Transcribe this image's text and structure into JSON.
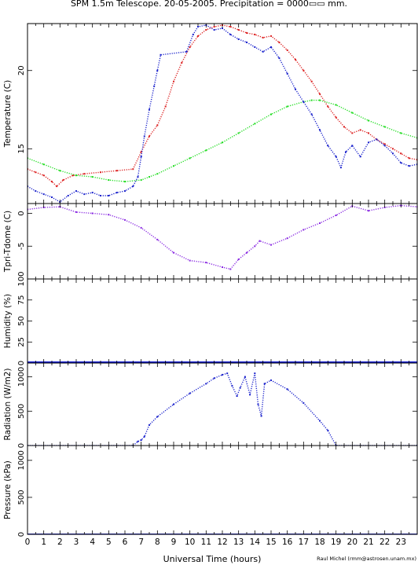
{
  "figure": {
    "title": "SPM 1.5m Telescope. 20-05-2005. Precipitation = 0000▭▭ mm.",
    "xlabel": "Universal Time (hours)",
    "credit": "Raul Michel (rmm@astrosen.unam.mx)"
  },
  "colors": {
    "red": "#dd2222",
    "green": "#22dd22",
    "blue": "#1a22cc",
    "purple": "#8a2be2",
    "axis": "#000000"
  },
  "chart_data": [
    {
      "type": "scatter",
      "ylabel": "Temperature (C)",
      "xlim": [
        0,
        24
      ],
      "ylim": [
        11.5,
        23
      ],
      "yticks": [
        15,
        20
      ],
      "series": [
        {
          "color": "red",
          "points": [
            [
              0,
              13.7
            ],
            [
              0.5,
              13.5
            ],
            [
              1,
              13.3
            ],
            [
              1.5,
              12.9
            ],
            [
              1.8,
              12.6
            ],
            [
              2.2,
              13.0
            ],
            [
              2.8,
              13.3
            ],
            [
              3.5,
              13.4
            ],
            [
              4.5,
              13.5
            ],
            [
              5.5,
              13.6
            ],
            [
              6.5,
              13.7
            ],
            [
              7.0,
              14.8
            ],
            [
              7.5,
              15.8
            ],
            [
              8.0,
              16.5
            ],
            [
              8.5,
              17.7
            ],
            [
              9.0,
              19.3
            ],
            [
              9.5,
              20.5
            ],
            [
              10.0,
              21.5
            ],
            [
              10.5,
              22.2
            ],
            [
              11.0,
              22.6
            ],
            [
              11.5,
              22.8
            ],
            [
              12.0,
              22.9
            ],
            [
              12.5,
              22.8
            ],
            [
              13.0,
              22.6
            ],
            [
              13.5,
              22.4
            ],
            [
              14.0,
              22.3
            ],
            [
              14.5,
              22.1
            ],
            [
              15.0,
              22.2
            ],
            [
              15.5,
              21.8
            ],
            [
              16.0,
              21.3
            ],
            [
              16.5,
              20.7
            ],
            [
              17.0,
              20.0
            ],
            [
              17.5,
              19.3
            ],
            [
              18.0,
              18.5
            ],
            [
              18.5,
              17.7
            ],
            [
              19.0,
              17.0
            ],
            [
              19.5,
              16.4
            ],
            [
              20.0,
              16.0
            ],
            [
              20.5,
              16.2
            ],
            [
              21.0,
              16.0
            ],
            [
              21.5,
              15.6
            ],
            [
              22.0,
              15.3
            ],
            [
              22.5,
              15.0
            ],
            [
              23.0,
              14.7
            ],
            [
              23.5,
              14.4
            ],
            [
              24,
              14.3
            ]
          ]
        },
        {
          "color": "green",
          "points": [
            [
              0,
              14.4
            ],
            [
              1,
              14.0
            ],
            [
              2,
              13.6
            ],
            [
              3,
              13.3
            ],
            [
              4,
              13.2
            ],
            [
              5,
              13.0
            ],
            [
              6,
              12.9
            ],
            [
              7,
              13.0
            ],
            [
              7.5,
              13.2
            ],
            [
              8,
              13.4
            ],
            [
              9,
              13.9
            ],
            [
              10,
              14.4
            ],
            [
              11,
              14.9
            ],
            [
              12,
              15.4
            ],
            [
              13,
              16.0
            ],
            [
              14,
              16.6
            ],
            [
              15,
              17.2
            ],
            [
              16,
              17.7
            ],
            [
              17,
              18.0
            ],
            [
              17.5,
              18.1
            ],
            [
              18,
              18.1
            ],
            [
              19,
              17.8
            ],
            [
              20,
              17.3
            ],
            [
              21,
              16.8
            ],
            [
              22,
              16.4
            ],
            [
              23,
              16.0
            ],
            [
              24,
              15.7
            ]
          ]
        },
        {
          "color": "blue",
          "points": [
            [
              0,
              12.6
            ],
            [
              0.5,
              12.3
            ],
            [
              1,
              12.1
            ],
            [
              1.5,
              11.9
            ],
            [
              2,
              11.6
            ],
            [
              2.5,
              12.0
            ],
            [
              3,
              12.3
            ],
            [
              3.5,
              12.1
            ],
            [
              4,
              12.2
            ],
            [
              4.5,
              12.0
            ],
            [
              5,
              12.0
            ],
            [
              5.5,
              12.2
            ],
            [
              6,
              12.3
            ],
            [
              6.5,
              12.6
            ],
            [
              6.8,
              13.2
            ],
            [
              7.0,
              14.5
            ],
            [
              7.2,
              15.8
            ],
            [
              7.5,
              17.5
            ],
            [
              7.8,
              19.0
            ],
            [
              8.0,
              20.0
            ],
            [
              8.2,
              21.0
            ],
            [
              9.8,
              21.2
            ],
            [
              10.2,
              22.3
            ],
            [
              10.5,
              22.8
            ],
            [
              11.0,
              22.9
            ],
            [
              11.5,
              22.6
            ],
            [
              12.0,
              22.7
            ],
            [
              12.5,
              22.3
            ],
            [
              13.0,
              22.0
            ],
            [
              13.5,
              21.8
            ],
            [
              14.0,
              21.5
            ],
            [
              14.5,
              21.2
            ],
            [
              15.0,
              21.5
            ],
            [
              15.5,
              20.8
            ],
            [
              16.0,
              19.8
            ],
            [
              16.5,
              18.8
            ],
            [
              17.0,
              18.0
            ],
            [
              17.5,
              17.2
            ],
            [
              18.0,
              16.2
            ],
            [
              18.5,
              15.2
            ],
            [
              19.0,
              14.5
            ],
            [
              19.3,
              13.8
            ],
            [
              19.6,
              14.8
            ],
            [
              20.0,
              15.2
            ],
            [
              20.5,
              14.5
            ],
            [
              21.0,
              15.4
            ],
            [
              21.5,
              15.6
            ],
            [
              22.0,
              15.2
            ],
            [
              22.5,
              14.7
            ],
            [
              23.0,
              14.1
            ],
            [
              23.5,
              13.9
            ],
            [
              24,
              14.0
            ]
          ]
        }
      ]
    },
    {
      "type": "scatter",
      "ylabel": "Tpri-Tdome (C)",
      "xlim": [
        0,
        24
      ],
      "ylim": [
        -10,
        1.5
      ],
      "yticks": [
        -5,
        0
      ],
      "series": [
        {
          "color": "purple",
          "points": [
            [
              0,
              0.6
            ],
            [
              1,
              0.9
            ],
            [
              2,
              1.0
            ],
            [
              3,
              0.2
            ],
            [
              4,
              0
            ],
            [
              5,
              -0.2
            ],
            [
              6,
              -1.0
            ],
            [
              7,
              -2.2
            ],
            [
              8,
              -4.0
            ],
            [
              9,
              -6.0
            ],
            [
              10,
              -7.2
            ],
            [
              11,
              -7.5
            ],
            [
              12,
              -8.2
            ],
            [
              12.5,
              -8.5
            ],
            [
              13,
              -7.0
            ],
            [
              13.5,
              -6.0
            ],
            [
              14,
              -5.0
            ],
            [
              14.3,
              -4.2
            ],
            [
              15,
              -4.8
            ],
            [
              16,
              -3.8
            ],
            [
              17,
              -2.5
            ],
            [
              18,
              -1.5
            ],
            [
              19,
              -0.3
            ],
            [
              20,
              1.1
            ],
            [
              21,
              0.4
            ],
            [
              22,
              0.9
            ],
            [
              23,
              1.2
            ],
            [
              24,
              1.0
            ]
          ]
        }
      ]
    },
    {
      "type": "line",
      "ylabel": "Humidity (%)",
      "xlim": [
        0,
        24
      ],
      "ylim": [
        0,
        100
      ],
      "yticks": [
        0,
        25,
        50,
        75,
        100
      ],
      "series": [
        {
          "color": "blue",
          "points": [
            [
              0,
              1
            ],
            [
              24,
              1
            ]
          ]
        }
      ]
    },
    {
      "type": "scatter",
      "ylabel": "Radiation (W/m2)",
      "xlim": [
        0,
        24
      ],
      "ylim": [
        0,
        1200
      ],
      "yticks": [
        0,
        500,
        1000
      ],
      "series": [
        {
          "color": "blue",
          "points": [
            [
              0,
              0
            ],
            [
              6.5,
              0
            ],
            [
              6.8,
              60
            ],
            [
              7.0,
              80
            ],
            [
              7.2,
              130
            ],
            [
              7.5,
              300
            ],
            [
              8,
              420
            ],
            [
              9,
              600
            ],
            [
              10,
              760
            ],
            [
              11,
              900
            ],
            [
              11.5,
              980
            ],
            [
              12,
              1030
            ],
            [
              12.3,
              1050
            ],
            [
              12.6,
              870
            ],
            [
              12.9,
              720
            ],
            [
              13.1,
              840
            ],
            [
              13.4,
              1000
            ],
            [
              13.7,
              740
            ],
            [
              14.0,
              1050
            ],
            [
              14.2,
              600
            ],
            [
              14.4,
              430
            ],
            [
              14.6,
              900
            ],
            [
              15,
              950
            ],
            [
              16,
              820
            ],
            [
              17,
              620
            ],
            [
              18,
              360
            ],
            [
              18.5,
              220
            ],
            [
              19,
              0
            ],
            [
              24,
              0
            ]
          ]
        }
      ]
    },
    {
      "type": "line",
      "ylabel": "Pressure (kPa)",
      "xlim": [
        0,
        24
      ],
      "ylim": [
        0,
        1200
      ],
      "yticks": [
        0,
        500,
        1000
      ],
      "series": [
        {
          "color": "blue",
          "points": [
            [
              0,
              0
            ],
            [
              24,
              0
            ]
          ]
        }
      ]
    }
  ],
  "xticks": [
    0,
    1,
    2,
    3,
    4,
    5,
    6,
    7,
    8,
    9,
    10,
    11,
    12,
    13,
    14,
    15,
    16,
    17,
    18,
    19,
    20,
    21,
    22,
    23
  ]
}
